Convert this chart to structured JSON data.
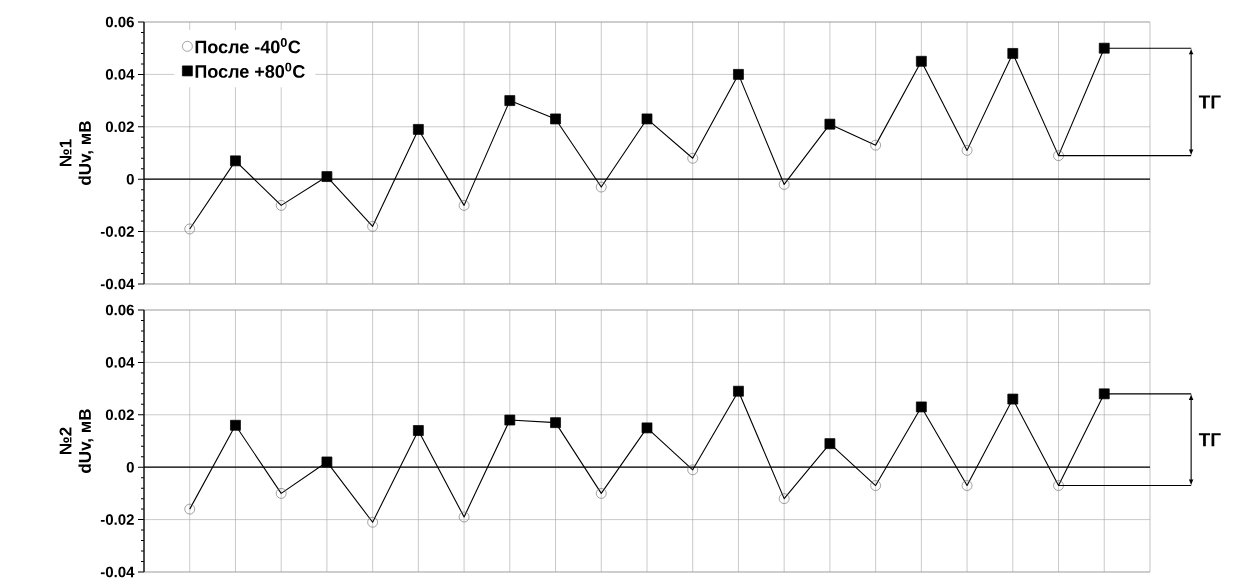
{
  "chart_data": [
    {
      "type": "scatter",
      "title": "№1",
      "ylabel": "dUv, мВ",
      "categories": [
        null,
        null,
        null,
        null,
        null,
        null,
        null,
        null,
        null,
        null,
        null,
        null,
        null,
        null,
        null,
        null,
        null,
        null,
        null,
        null,
        null
      ],
      "series": [
        {
          "type": "line",
          "color": "#000000",
          "marker": "none",
          "values": [
            -0.019,
            0.007,
            -0.01,
            0.001,
            -0.018,
            0.019,
            -0.01,
            0.03,
            0.023,
            -0.003,
            0.023,
            0.008,
            0.04,
            -0.002,
            0.021,
            0.013,
            0.045,
            0.011,
            0.048,
            0.009,
            0.05
          ]
        },
        {
          "name": "После -40$^{0}$С",
          "color": "#666666",
          "marker": "circle",
          "values": [
            -0.019,
            null,
            -0.01,
            null,
            -0.018,
            null,
            -0.01,
            null,
            null,
            -0.003,
            null,
            0.008,
            null,
            -0.002,
            null,
            0.013,
            null,
            0.011,
            null,
            0.009,
            null
          ]
        },
        {
          "name": "После +80$^{0}$С",
          "color": "#000000",
          "marker": "square",
          "values": [
            null,
            0.007,
            null,
            0.001,
            null,
            0.019,
            null,
            0.03,
            0.023,
            null,
            0.023,
            null,
            0.04,
            null,
            0.021,
            null,
            0.045,
            null,
            0.048,
            null,
            0.05
          ]
        }
      ],
      "ylim": [
        -0.04,
        0.06
      ],
      "yticks": [
        -0.04,
        -0.02,
        0,
        0.02,
        0.04,
        0.06
      ],
      "grid": true,
      "legend": "top left",
      "ref_lines": [
        {
          "axis": "y",
          "value": 0,
          "color": "#000000"
        }
      ],
      "annotations": [
        "ТГ"
      ]
    },
    {
      "type": "scatter",
      "title": "№2",
      "ylabel": "dUv, мВ",
      "categories": [
        null,
        null,
        null,
        null,
        null,
        null,
        null,
        null,
        null,
        null,
        null,
        null,
        null,
        null,
        null,
        null,
        null,
        null,
        null,
        null,
        null
      ],
      "series": [
        {
          "type": "line",
          "color": "#000000",
          "marker": "none",
          "values": [
            -0.016,
            0.016,
            -0.01,
            0.002,
            -0.021,
            0.014,
            -0.019,
            0.018,
            0.017,
            -0.01,
            0.015,
            -0.001,
            0.029,
            -0.012,
            0.009,
            -0.007,
            0.023,
            -0.007,
            0.026,
            -0.007,
            0.028
          ]
        },
        {
          "color": "#666666",
          "marker": "circle",
          "values": [
            -0.016,
            null,
            -0.01,
            null,
            -0.021,
            null,
            -0.019,
            null,
            null,
            -0.01,
            null,
            -0.001,
            null,
            -0.012,
            null,
            -0.007,
            null,
            -0.007,
            null,
            -0.007,
            null
          ]
        },
        {
          "color": "#000000",
          "marker": "square",
          "values": [
            null,
            0.016,
            null,
            0.002,
            null,
            0.014,
            null,
            0.018,
            0.017,
            null,
            0.015,
            null,
            0.029,
            null,
            0.009,
            null,
            0.023,
            null,
            0.026,
            null,
            0.028
          ]
        }
      ],
      "ylim": [
        -0.04,
        0.06
      ],
      "yticks": [
        -0.04,
        -0.02,
        0,
        0.02,
        0.04,
        0.06
      ],
      "grid": true,
      "ref_lines": [
        {
          "axis": "y",
          "value": 0,
          "color": "#000000"
        }
      ],
      "annotations": [
        "ТГ"
      ]
    }
  ]
}
